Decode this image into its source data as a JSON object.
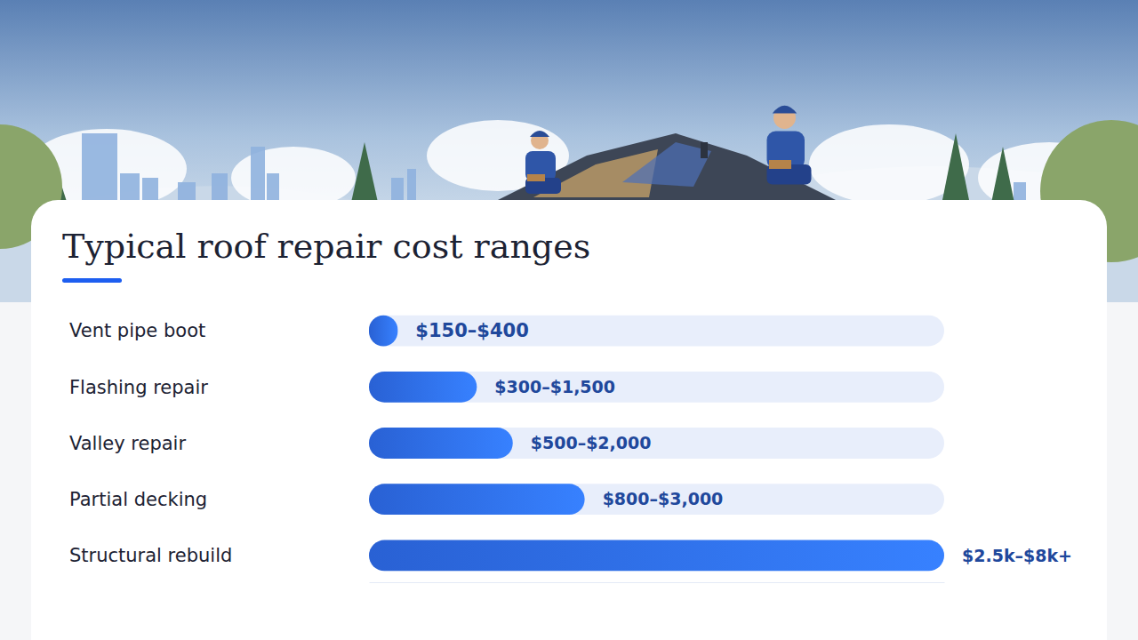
{
  "chart_data": {
    "type": "bar",
    "orientation": "horizontal",
    "title": "Typical roof repair cost ranges",
    "categories": [
      "Vent pipe boot",
      "Flashing repair",
      "Valley repair",
      "Partial decking",
      "Structural rebuild"
    ],
    "values": [
      400,
      1500,
      2000,
      3000,
      8000
    ],
    "value_labels": [
      "$150–$400",
      "$300–$1,500",
      "$500–$2,000",
      "$800–$3,000",
      "$2.5k–$8k+"
    ],
    "xlim": [
      0,
      8000
    ],
    "data_labels": true,
    "tick_labels": "y",
    "color": "#2f6ef0"
  }
}
